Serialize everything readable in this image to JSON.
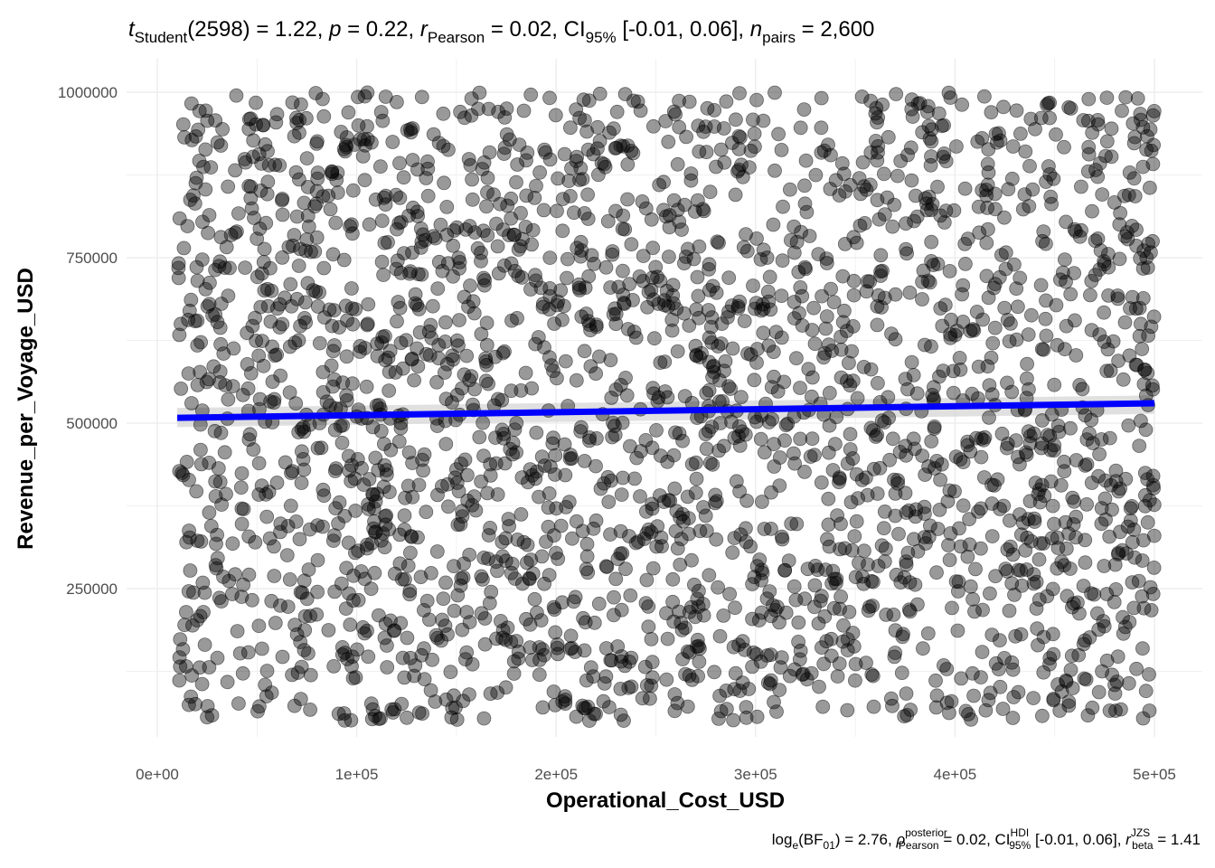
{
  "chart_data": {
    "type": "scatter",
    "title": {
      "stat_name": "t",
      "stat_sub": "Student",
      "df": "(2598)",
      "stat_value": "1.22",
      "p_name": "p",
      "p_value": "0.22",
      "r_name": "r",
      "r_sub": "Pearson",
      "r_value": "0.02",
      "ci_name": "CI",
      "ci_sub": "95%",
      "ci_value": "[-0.01, 0.06]",
      "n_name": "n",
      "n_sub": "pairs",
      "n_value": "2,600"
    },
    "caption": {
      "bf_pre": "log",
      "bf_pre_sub": "e",
      "bf_name": "(BF",
      "bf_sub": "01",
      "bf_close": ")",
      "bf_value": "2.76",
      "rho_name": "ρ",
      "rho_sup": "posterior",
      "rho_sub": "Pearson",
      "rho_value": "0.02",
      "ci_name": "CI",
      "ci_sup": "HDI",
      "ci_sub": "95%",
      "ci_value": "[-0.01, 0.06]",
      "r_name": "r",
      "r_sup": "JZS",
      "r_sub": "beta",
      "r_value": "1.41"
    },
    "xlabel": "Operational_Cost_USD",
    "ylabel": "Revenue_per_Voyage_USD",
    "xlim": [
      0,
      500000
    ],
    "ylim": [
      50000,
      1000000
    ],
    "x_ticks": [
      0,
      100000,
      200000,
      300000,
      400000,
      500000
    ],
    "x_tick_labels": [
      "0e+00",
      "1e+05",
      "2e+05",
      "3e+05",
      "4e+05",
      "5e+05"
    ],
    "y_ticks": [
      250000,
      500000,
      750000,
      1000000
    ],
    "y_tick_labels": [
      "250000",
      "500000",
      "750000",
      "1000000"
    ],
    "grid": true,
    "n_points": 2600,
    "x_range": [
      10000,
      500000
    ],
    "y_range": [
      50000,
      1000000
    ],
    "point_color": "#000000",
    "point_alpha": 0.4,
    "trend_line": {
      "x": [
        10000,
        500000
      ],
      "y": [
        508000,
        530000
      ],
      "color": "#0000ff"
    },
    "ci_band": {
      "color": "#d3d3d3",
      "upper_at_x_min": 523000,
      "lower_at_x_min": 494000,
      "upper_at_x_max": 542000,
      "lower_at_x_max": 514000
    }
  }
}
